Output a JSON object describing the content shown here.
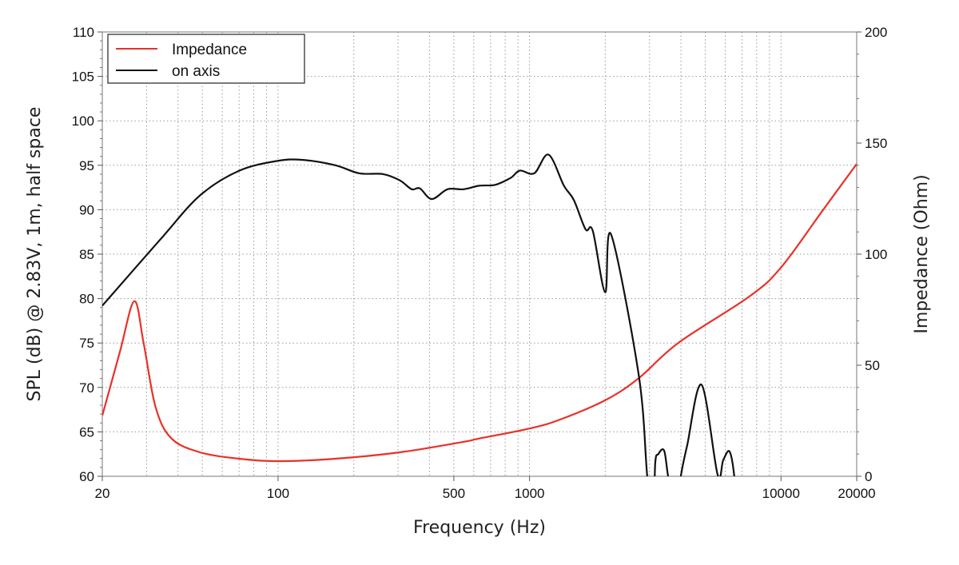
{
  "chart_data": {
    "type": "line",
    "xscale": "log",
    "xlabel": "Frequency (Hz)",
    "ylabel": "SPL (dB) @ 2.83V, 1m, half space",
    "y2label": "Impedance (Ohm)",
    "xlim": [
      20,
      20000
    ],
    "ylim": [
      60,
      110
    ],
    "y2lim": [
      0,
      200
    ],
    "x_ticks": [
      20,
      100,
      500,
      1000,
      10000,
      20000
    ],
    "x_tick_labels": [
      "20",
      "100",
      "500",
      "1000",
      "10000",
      "20000"
    ],
    "y_ticks": [
      60,
      65,
      70,
      75,
      80,
      85,
      90,
      95,
      100,
      105,
      110
    ],
    "y_tick_labels": [
      "60",
      "65",
      "70",
      "75",
      "80",
      "85",
      "90",
      "95",
      "100",
      "105",
      "110"
    ],
    "y2_ticks": [
      0,
      50,
      100,
      150,
      200
    ],
    "y2_tick_labels": [
      "0",
      "50",
      "100",
      "150",
      "200"
    ],
    "grid": true,
    "legend_position": "top-left",
    "series": [
      {
        "name": "Impedance",
        "axis": "right",
        "color": "#e8312a",
        "x": [
          20,
          23.5,
          26.8,
          29.2,
          32.6,
          37.7,
          48.9,
          70,
          100,
          169,
          305,
          546,
          631,
          1000,
          1320,
          2020,
          2720,
          3900,
          7500,
          10000,
          14500,
          20000
        ],
        "y": [
          27.3,
          56,
          78.8,
          60,
          31,
          17,
          10.8,
          7.9,
          6.8,
          7.9,
          10.8,
          15.5,
          17,
          21.5,
          25.5,
          34.5,
          44.2,
          60,
          81,
          94,
          119,
          140.6
        ]
      },
      {
        "name": "on axis",
        "axis": "left",
        "color": "#111111",
        "x": [
          20,
          33.9,
          48.9,
          70.2,
          100,
          126,
          169,
          210,
          262,
          305,
          340,
          366,
          409,
          472,
          546,
          631,
          730,
          843,
          915,
          1045,
          1190,
          1370,
          1500,
          1670,
          1785,
          2000,
          2110,
          2720,
          2938,
          3100,
          3161,
          3250,
          3428,
          3556,
          3800,
          3996,
          4236,
          4832,
          5596,
          5888,
          6240,
          6520,
          6700
        ],
        "y": [
          79.2,
          86.6,
          91.6,
          94.4,
          95.5,
          95.6,
          95,
          94.1,
          94,
          93.3,
          92.3,
          92.4,
          91.2,
          92.3,
          92.3,
          92.7,
          92.8,
          93.6,
          94.4,
          94.1,
          96.2,
          92.7,
          91.1,
          87.8,
          87.6,
          80.7,
          87.2,
          71.3,
          60,
          55,
          61.5,
          62.5,
          62.9,
          60,
          55,
          60,
          63.5,
          70.3,
          60.2,
          61.8,
          62.8,
          60,
          55
        ]
      }
    ]
  }
}
